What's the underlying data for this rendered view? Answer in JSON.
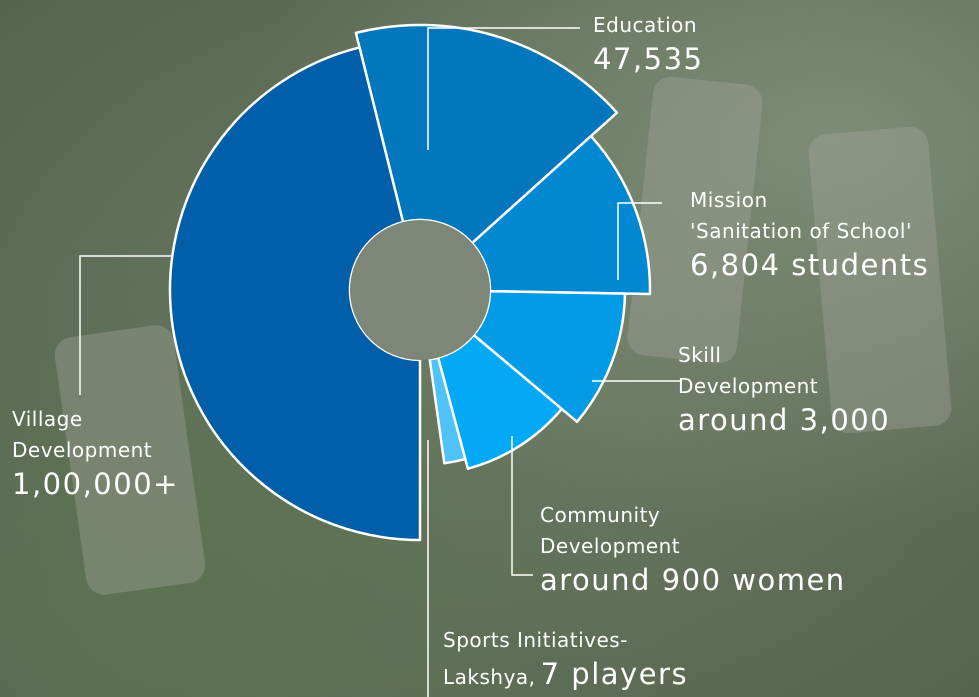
{
  "chart_data": {
    "type": "pie",
    "style": "rose-donut",
    "slices": [
      {
        "name": "Education",
        "name_lines": [
          "Education"
        ],
        "value_text": "47,535",
        "color": "#0277bd"
      },
      {
        "name": "Mission 'Sanitation of School'",
        "name_lines": [
          "Mission",
          "'Sanitation of School'"
        ],
        "value_text": "6,804 students",
        "color": "#0288d1"
      },
      {
        "name": "Skill Development",
        "name_lines": [
          "Skill",
          "Development"
        ],
        "value_text": "around 3,000",
        "color": "#039be5"
      },
      {
        "name": "Community Development",
        "name_lines": [
          "Community",
          "Development"
        ],
        "value_text": "around 900 women",
        "color": "#03a9f4"
      },
      {
        "name": "Sports Initiatives-Lakshya",
        "name_lines": [
          "Sports Initiatives-",
          "Lakshya,"
        ],
        "value_text": "7 players",
        "color": "#4fc3f7"
      },
      {
        "name": "Village Development",
        "name_lines": [
          "Village",
          "Development"
        ],
        "value_text": "1,00,000+",
        "color": "#015ea8"
      }
    ]
  }
}
